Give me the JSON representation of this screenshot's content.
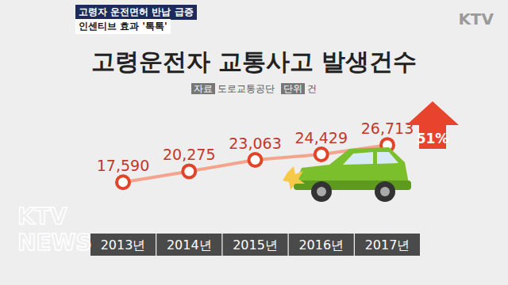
{
  "chart_data": {
    "type": "line",
    "title": "고령운전자 교통사고 발생건수",
    "source_label": "자료",
    "source": "도로교통공단",
    "unit_label": "단위",
    "unit": "건",
    "headline": [
      "고령자 운전면허 반납 급증",
      "인센티브 효과 '톡톡'"
    ],
    "logo": "KTV",
    "watermark": [
      "KTV",
      "NEWS"
    ],
    "annotation": "51%",
    "categories": [
      "2013년",
      "2014년",
      "2015년",
      "2016년",
      "2017년"
    ],
    "values": [
      17590,
      20275,
      23063,
      24429,
      26713
    ],
    "value_labels": [
      "17,590",
      "20,275",
      "23,063",
      "24,429",
      "26,713"
    ],
    "color": "#f4a48c",
    "marker": "circle",
    "ylim": [
      7000,
      37000
    ],
    "data_labels": true,
    "tick_labels": "x"
  }
}
